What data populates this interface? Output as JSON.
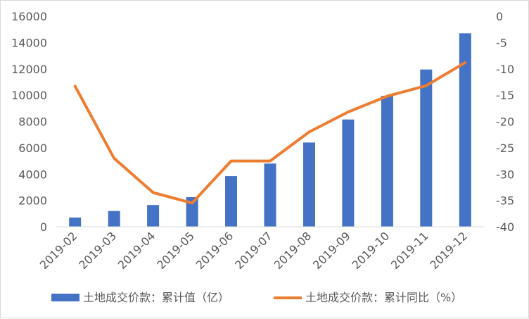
{
  "chart_data": {
    "type": "bar+line",
    "categories": [
      "2019-02",
      "2019-03",
      "2019-04",
      "2019-05",
      "2019-06",
      "2019-07",
      "2019-08",
      "2019-09",
      "2019-10",
      "2019-11",
      "2019-12"
    ],
    "series": [
      {
        "name": "土地成交价款：累计值（亿）",
        "type": "bar",
        "axis": "left",
        "color": "#4472C4",
        "values": [
          700,
          1200,
          1650,
          2250,
          3850,
          4800,
          6400,
          8150,
          9950,
          11950,
          14700
        ]
      },
      {
        "name": "土地成交价款：累计同比（%）",
        "type": "line",
        "axis": "right",
        "color": "#ED7D31",
        "values": [
          -13.3,
          -27.0,
          -33.5,
          -35.5,
          -27.5,
          -27.5,
          -22.0,
          -18.2,
          -15.2,
          -13.2,
          -8.8
        ]
      }
    ],
    "y_left": {
      "min": 0,
      "max": 16000,
      "ticks": [
        0,
        2000,
        4000,
        6000,
        8000,
        10000,
        12000,
        14000,
        16000
      ]
    },
    "y_right": {
      "min": -40,
      "max": 0,
      "ticks": [
        0,
        -5,
        -10,
        -15,
        -20,
        -25,
        -30,
        -35,
        -40
      ]
    },
    "grid": false,
    "legend_position": "bottom"
  }
}
